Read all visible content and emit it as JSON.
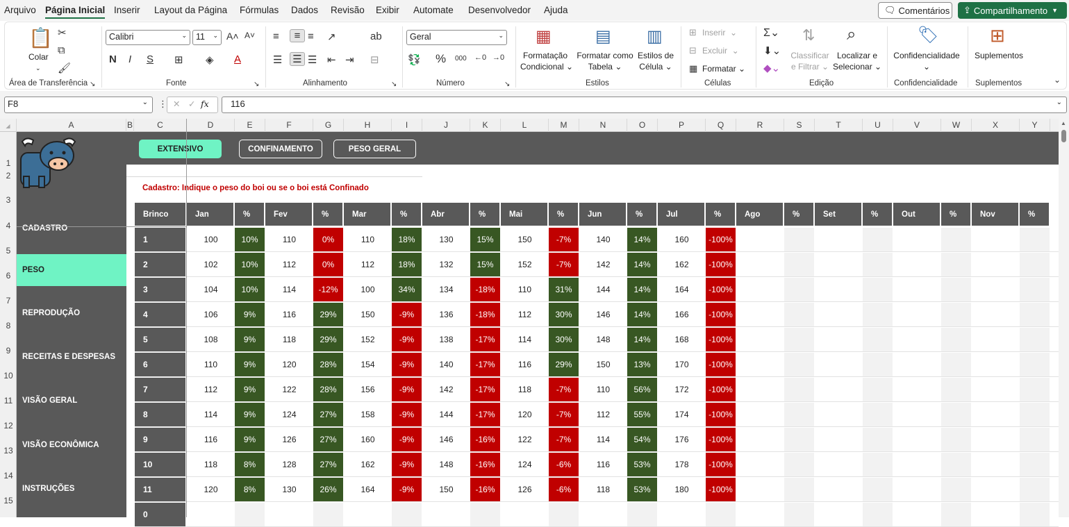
{
  "menu": {
    "items": [
      "Arquivo",
      "Página Inicial",
      "Inserir",
      "Layout da Página",
      "Fórmulas",
      "Dados",
      "Revisão",
      "Exibir",
      "Automate",
      "Desenvolvedor",
      "Ajuda"
    ],
    "comments_label": "Comentários",
    "share_label": "Compartilhamento"
  },
  "ribbon": {
    "clipboard": {
      "paste": "Colar",
      "title": "Área de Transferência"
    },
    "font": {
      "name": "Calibri",
      "size": "11",
      "title": "Fonte"
    },
    "alignment": {
      "title": "Alinhamento"
    },
    "number": {
      "format": "Geral",
      "title": "Número"
    },
    "styles": {
      "conditional_1": "Formatação",
      "conditional_2": "Condicional",
      "table_1": "Formatar como",
      "table_2": "Tabela",
      "cell_1": "Estilos de",
      "cell_2": "Célula",
      "title": "Estilos"
    },
    "cells": {
      "insert": "Inserir",
      "delete": "Excluir",
      "format": "Formatar",
      "title": "Células"
    },
    "editing": {
      "sort_1": "Classificar",
      "sort_2": "e Filtrar",
      "find_1": "Localizar e",
      "find_2": "Selecionar",
      "title": "Edição"
    },
    "sensitivity": {
      "label": "Confidencialidade",
      "title": "Confidencialidade"
    },
    "addins": {
      "label": "Suplementos",
      "title": "Suplementos"
    }
  },
  "formula_bar": {
    "name_box": "F8",
    "formula": "116"
  },
  "columns": [
    "A",
    "B",
    "C",
    "D",
    "E",
    "F",
    "G",
    "H",
    "I",
    "J",
    "K",
    "L",
    "M",
    "N",
    "O",
    "P",
    "Q",
    "R",
    "S",
    "T",
    "U",
    "V",
    "W",
    "X",
    "Y"
  ],
  "rows": [
    "1",
    "2",
    "3",
    "4",
    "5",
    "6",
    "7",
    "8",
    "9",
    "10",
    "11",
    "12",
    "13",
    "14",
    "15"
  ],
  "sidebar": {
    "items": [
      "CADASTRO",
      "PESO",
      "REPRODUÇÃO",
      "RECEITAS E DESPESAS",
      "VISÃO GERAL",
      "VISÃO ECONÔMICA",
      "INSTRUÇÕES"
    ]
  },
  "banner": {
    "buttons": [
      "EXTENSIVO",
      "CONFINAMENTO",
      "PESO GERAL"
    ]
  },
  "note": "Cadastro: Indique o peso do boi ou se o boi está Confinado",
  "table": {
    "brinco_header": "Brinco",
    "months": [
      "Jan",
      "Fev",
      "Mar",
      "Abr",
      "Mai",
      "Jun",
      "Jul",
      "Ago",
      "Set",
      "Out",
      "Nov"
    ],
    "pct_header": "%",
    "rows": [
      {
        "brinco": "1",
        "weights": [
          "100",
          "110",
          "110",
          "130",
          "150",
          "140",
          "160"
        ],
        "pcts": [
          "10%",
          "0%",
          "18%",
          "15%",
          "-7%",
          "14%",
          "-100%"
        ]
      },
      {
        "brinco": "2",
        "weights": [
          "102",
          "112",
          "112",
          "132",
          "152",
          "142",
          "162"
        ],
        "pcts": [
          "10%",
          "0%",
          "18%",
          "15%",
          "-7%",
          "14%",
          "-100%"
        ]
      },
      {
        "brinco": "3",
        "weights": [
          "104",
          "114",
          "100",
          "134",
          "110",
          "144",
          "164"
        ],
        "pcts": [
          "10%",
          "-12%",
          "34%",
          "-18%",
          "31%",
          "14%",
          "-100%"
        ]
      },
      {
        "brinco": "4",
        "weights": [
          "106",
          "116",
          "150",
          "136",
          "112",
          "146",
          "166"
        ],
        "pcts": [
          "9%",
          "29%",
          "-9%",
          "-18%",
          "30%",
          "14%",
          "-100%"
        ]
      },
      {
        "brinco": "5",
        "weights": [
          "108",
          "118",
          "152",
          "138",
          "114",
          "148",
          "168"
        ],
        "pcts": [
          "9%",
          "29%",
          "-9%",
          "-17%",
          "30%",
          "14%",
          "-100%"
        ]
      },
      {
        "brinco": "6",
        "weights": [
          "110",
          "120",
          "154",
          "140",
          "116",
          "150",
          "170"
        ],
        "pcts": [
          "9%",
          "28%",
          "-9%",
          "-17%",
          "29%",
          "13%",
          "-100%"
        ]
      },
      {
        "brinco": "7",
        "weights": [
          "112",
          "122",
          "156",
          "142",
          "118",
          "110",
          "172"
        ],
        "pcts": [
          "9%",
          "28%",
          "-9%",
          "-17%",
          "-7%",
          "56%",
          "-100%"
        ]
      },
      {
        "brinco": "8",
        "weights": [
          "114",
          "124",
          "158",
          "144",
          "120",
          "112",
          "174"
        ],
        "pcts": [
          "9%",
          "27%",
          "-9%",
          "-17%",
          "-7%",
          "55%",
          "-100%"
        ]
      },
      {
        "brinco": "9",
        "weights": [
          "116",
          "126",
          "160",
          "146",
          "122",
          "114",
          "176"
        ],
        "pcts": [
          "9%",
          "27%",
          "-9%",
          "-16%",
          "-7%",
          "54%",
          "-100%"
        ]
      },
      {
        "brinco": "10",
        "weights": [
          "118",
          "128",
          "162",
          "148",
          "124",
          "116",
          "178"
        ],
        "pcts": [
          "8%",
          "27%",
          "-9%",
          "-16%",
          "-6%",
          "53%",
          "-100%"
        ]
      },
      {
        "brinco": "11",
        "weights": [
          "120",
          "130",
          "164",
          "150",
          "126",
          "118",
          "180"
        ],
        "pcts": [
          "8%",
          "26%",
          "-9%",
          "-16%",
          "-6%",
          "53%",
          "-100%"
        ]
      },
      {
        "brinco": "0",
        "weights": [],
        "pcts": []
      }
    ]
  },
  "colors": {
    "excel_green": "#1e7145",
    "sidebar": "#595959",
    "accent": "#6ff3c4",
    "positive": "#385723",
    "negative": "#c00000",
    "note_red": "#c00000"
  }
}
